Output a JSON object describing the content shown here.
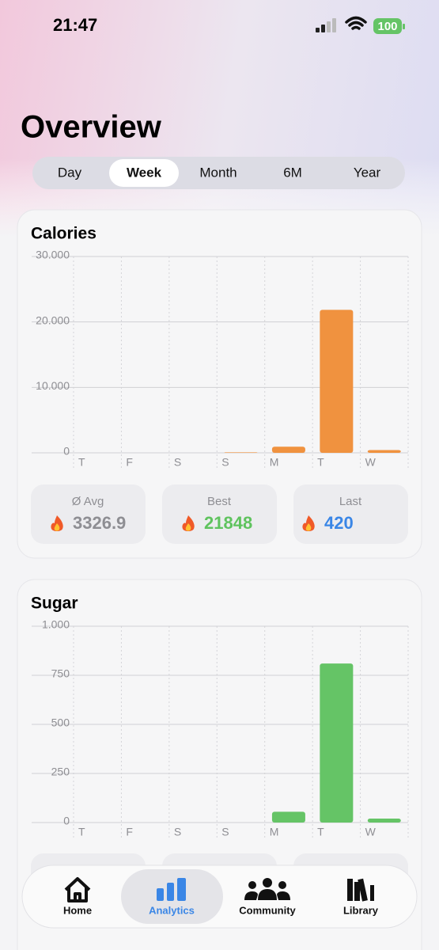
{
  "status_bar": {
    "time": "21:47",
    "battery": "100"
  },
  "header": {
    "title": "Overview"
  },
  "tabs": [
    "Day",
    "Week",
    "Month",
    "6M",
    "Year"
  ],
  "chart_data": [
    {
      "type": "bar",
      "title": "Calories",
      "categories": [
        "T",
        "F",
        "S",
        "S",
        "M",
        "T",
        "W"
      ],
      "values": [
        0,
        0,
        0,
        80,
        940,
        21848,
        420
      ],
      "color": "#f0923f",
      "ylim": [
        0,
        30000
      ],
      "yticks": [
        0,
        {
          "value": 10000,
          "label": "10.000"
        },
        {
          "value": 20000,
          "label": "20.000"
        },
        {
          "value": 30000,
          "label": "30.000"
        }
      ],
      "grid": true
    },
    {
      "type": "bar",
      "title": "Sugar",
      "categories": [
        "T",
        "F",
        "S",
        "S",
        "M",
        "T",
        "W"
      ],
      "values": [
        0,
        0,
        0,
        0,
        55,
        810,
        20
      ],
      "color": "#65c466",
      "ylim": [
        0,
        1000
      ],
      "yticks": [
        0,
        250,
        500,
        750,
        {
          "value": 1000,
          "label": "1.000"
        }
      ],
      "grid": true
    }
  ],
  "stats": [
    {
      "label": "Ø Avg",
      "value": 3326.9,
      "color": "#8e8e93"
    },
    {
      "label": "Best",
      "value": 21848,
      "color": "#5fc35e"
    },
    {
      "label": "Last",
      "value": 420,
      "color": "#3a86e6"
    }
  ],
  "nav": [
    "Home",
    "Analytics",
    "Community",
    "Library"
  ]
}
